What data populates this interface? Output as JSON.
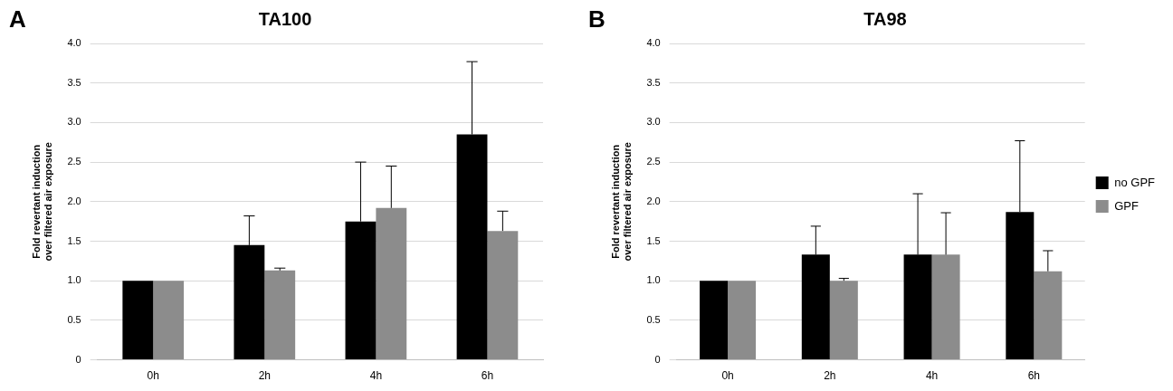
{
  "chart_data": [
    {
      "type": "bar",
      "annotation": "A",
      "title": "TA100",
      "ylabel": [
        "Fold revertant induction",
        "over filtered air exposure"
      ],
      "categories": [
        "0h",
        "2h",
        "4h",
        "6h"
      ],
      "series": [
        {
          "name": "no GPF",
          "color": "#000000",
          "values": [
            1,
            1.45,
            1.75,
            2.85
          ],
          "errors": [
            0,
            0.37,
            0.75,
            0.92
          ]
        },
        {
          "name": "GPF",
          "color": "#8c8c8c",
          "values": [
            1,
            1.13,
            1.92,
            1.63
          ],
          "errors": [
            0,
            0.03,
            0.53,
            0.25
          ]
        }
      ],
      "ylim": [
        0,
        4
      ],
      "yticks": [
        0,
        0.5,
        1,
        1.5,
        2,
        2.5,
        3,
        3.5,
        4
      ],
      "grid": true
    },
    {
      "type": "bar",
      "annotation": "B",
      "title": "TA98",
      "ylabel": [
        "Fold revertant induction",
        "over filtered air exposure"
      ],
      "categories": [
        "0h",
        "2h",
        "4h",
        "6h"
      ],
      "series": [
        {
          "name": "no GPF",
          "color": "#000000",
          "values": [
            1,
            1.33,
            1.33,
            1.87
          ],
          "errors": [
            0,
            0.36,
            0.77,
            0.9
          ]
        },
        {
          "name": "GPF",
          "color": "#8c8c8c",
          "values": [
            1,
            1.0,
            1.33,
            1.12
          ],
          "errors": [
            0,
            0.03,
            0.53,
            0.26
          ]
        }
      ],
      "ylim": [
        0,
        4
      ],
      "yticks": [
        0,
        0.5,
        1,
        1.5,
        2,
        2.5,
        3,
        3.5,
        4
      ],
      "grid": true,
      "legend": "right"
    }
  ]
}
